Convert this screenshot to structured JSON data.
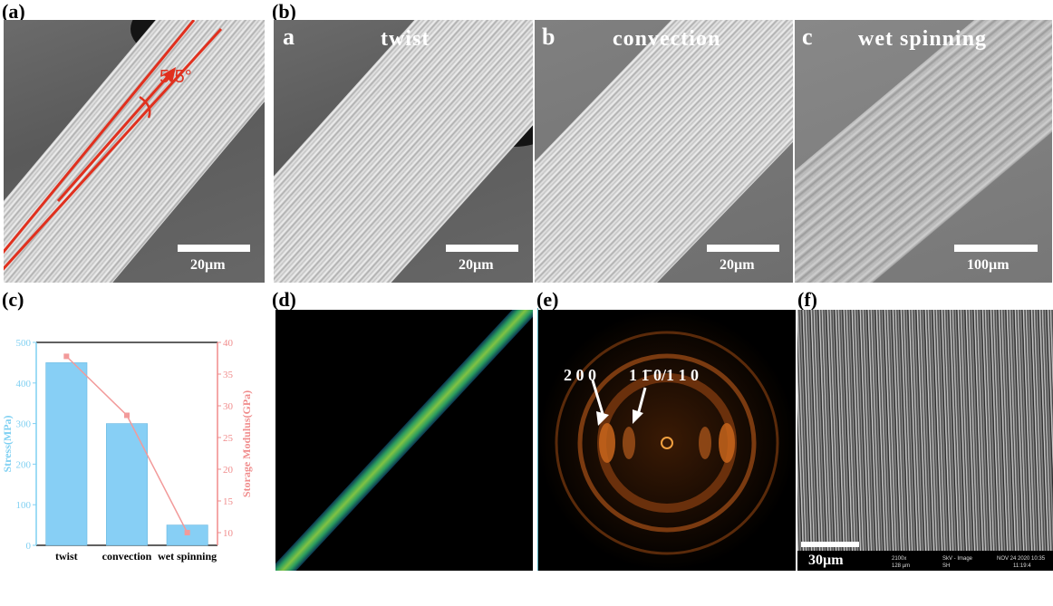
{
  "panels": {
    "a": {
      "label": "(a)",
      "angle": "5.5°",
      "scale": "20µm"
    },
    "b": {
      "label": "(b)",
      "sub": [
        {
          "letter": "a",
          "title": "twist",
          "scale": "20µm"
        },
        {
          "letter": "b",
          "title": "convection",
          "scale": "20µm"
        },
        {
          "letter": "c",
          "title": "wet spinning",
          "scale": "100µm"
        }
      ]
    },
    "c": {
      "label": "(c)"
    },
    "d": {
      "label": "(d)"
    },
    "e": {
      "label": "(e)",
      "peak1": "2 0 0",
      "peak2": "1 1̄ 0/1 1 0"
    },
    "f": {
      "label": "(f)",
      "scale": "30µm",
      "info": [
        "2100x",
        "128 µm",
        "SkV - Image",
        "SH",
        "NOV 24 2020 10:35",
        "11:19:4"
      ]
    }
  },
  "chart_data": {
    "type": "bar",
    "categories": [
      "twist",
      "convection",
      "wet spinning"
    ],
    "series": [
      {
        "name": "Stress",
        "kind": "bar",
        "axis": "left",
        "values": [
          450,
          300,
          50
        ]
      },
      {
        "name": "Storage Modulus",
        "kind": "line",
        "axis": "right",
        "values": [
          37.8,
          28.5,
          10
        ]
      }
    ],
    "ylabel": "Stress(MPa)",
    "y2label": "Storage Modulus(GPa)",
    "ylim": [
      0,
      500
    ],
    "y2lim": [
      8,
      40
    ],
    "yticks": [
      0,
      100,
      200,
      300,
      400,
      500
    ],
    "y2ticks": [
      10,
      15,
      20,
      25,
      30,
      35,
      40
    ],
    "bar_color": "#87cff5",
    "line_color": "#f29a9a",
    "left_axis_color": "#7fd0f2",
    "right_axis_color": "#f08c8c"
  }
}
